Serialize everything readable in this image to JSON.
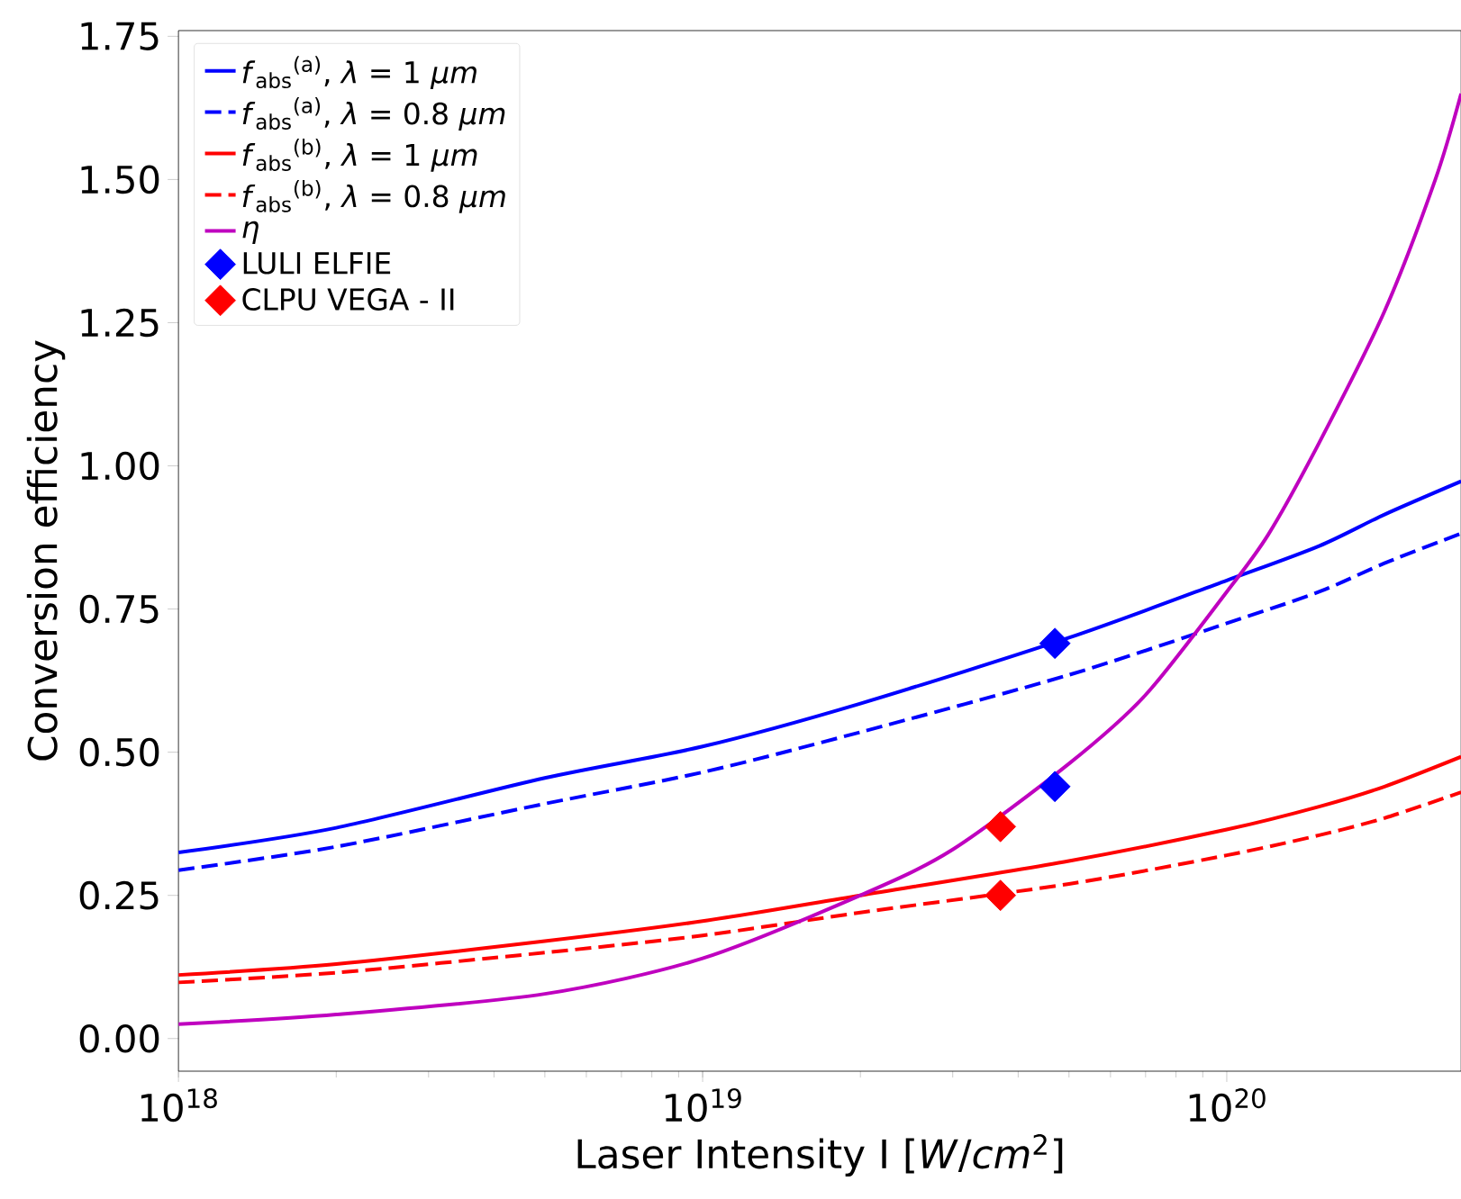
{
  "chart_data": {
    "type": "line",
    "xlabel": "Laser Intensity I [*W*/*cm*$^{2}$]",
    "ylabel": "Conversion efficiency",
    "log": "x",
    "x": [
      1e+18,
      2e+18,
      5e+18,
      1e+19,
      2e+19,
      5e+19,
      1e+20,
      1.5e+20,
      2e+20,
      2.8e+20
    ],
    "xlim": [
      1e+18,
      2.8e+20
    ],
    "xticks": [
      {
        "value": 1e+18,
        "label": "10$^{18}$"
      },
      {
        "value": 1e+19,
        "label": "10$^{19}$"
      },
      {
        "value": 1e+20,
        "label": "10$^{20}$"
      }
    ],
    "ylim": [
      -0.057,
      1.76
    ],
    "yticks": [
      {
        "value": 0,
        "label": "0.00"
      },
      {
        "value": 0.25,
        "label": "0.25"
      },
      {
        "value": 0.5,
        "label": "0.50"
      },
      {
        "value": 0.75,
        "label": "0.75"
      },
      {
        "value": 1.0,
        "label": "1.00"
      },
      {
        "value": 1.25,
        "label": "1.25"
      },
      {
        "value": 1.5,
        "label": "1.50"
      },
      {
        "value": 1.75,
        "label": "1.75"
      }
    ],
    "grid": false,
    "legend": "top left",
    "series": [
      {
        "name": "*f*$_{abs}$$^{(a)}$,  *λ* = 1 *μm*",
        "color": "#0000ff",
        "line_style": "solid",
        "values": [
          0.325,
          0.368,
          0.455,
          0.51,
          0.585,
          0.7,
          0.8,
          0.86,
          0.915,
          0.973
        ]
      },
      {
        "name": "*f*$_{abs}$$^{(a)}$,  *λ* = 0.8 *μm*",
        "color": "#0000ff",
        "line_style": "dashed",
        "values": [
          0.294,
          0.335,
          0.41,
          0.465,
          0.535,
          0.635,
          0.725,
          0.78,
          0.83,
          0.882
        ]
      },
      {
        "name": "*f*$_{abs}$$^{(b)}$,  *λ* = 1 *μm*",
        "color": "#ff0000",
        "line_style": "solid",
        "values": [
          0.111,
          0.13,
          0.17,
          0.205,
          0.25,
          0.31,
          0.365,
          0.405,
          0.44,
          0.492
        ]
      },
      {
        "name": "*f*$_{abs}$$^{(b)}$,  *λ* = 0.8 *μm*",
        "color": "#ff0000",
        "line_style": "dashed",
        "values": [
          0.098,
          0.115,
          0.15,
          0.18,
          0.22,
          0.27,
          0.32,
          0.355,
          0.385,
          0.43
        ]
      },
      {
        "name": "*η*",
        "color": "#bf00bf",
        "line_style": "solid",
        "x": [
          1e+18,
          2e+18,
          5e+18,
          1e+19,
          2e+19,
          3e+19,
          5e+19,
          7e+19,
          1e+20,
          1.2e+20,
          1.5e+20,
          2e+20,
          2.5e+20,
          2.8e+20
        ],
        "values": [
          0.025,
          0.042,
          0.078,
          0.14,
          0.25,
          0.33,
          0.48,
          0.6,
          0.78,
          0.88,
          1.04,
          1.27,
          1.5,
          1.65
        ]
      },
      {
        "name": "LULI ELFIE",
        "type": "scatter",
        "marker": "diamond",
        "color": "#0000ff",
        "x": [
          4.7e+19,
          4.7e+19
        ],
        "values": [
          0.69,
          0.44
        ]
      },
      {
        "name": "CLPU VEGA - II",
        "type": "scatter",
        "marker": "diamond",
        "color": "#ff0000",
        "x": [
          3.7e+19,
          3.7e+19
        ],
        "values": [
          0.37,
          0.25
        ]
      }
    ]
  }
}
